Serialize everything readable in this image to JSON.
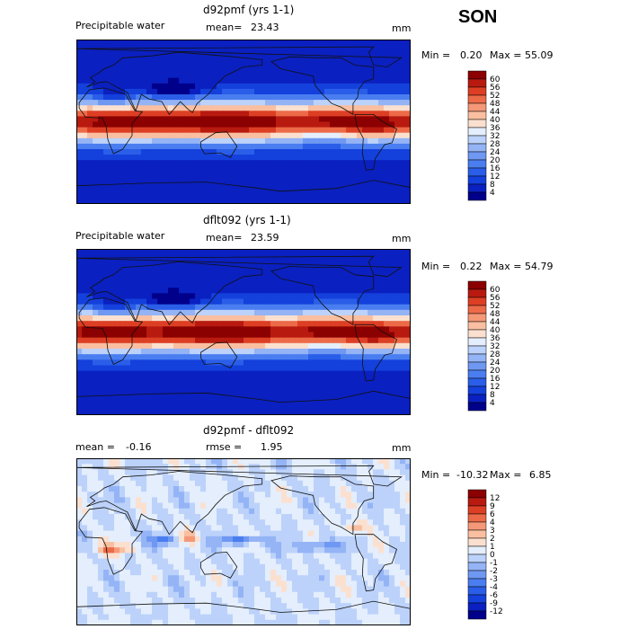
{
  "season": "SON",
  "chart_data": [
    {
      "type": "heatmap",
      "title": "d92pmf (yrs 1-1)",
      "field_label": "Precipitable water",
      "stat_label": "mean=",
      "stat_value": "23.43",
      "units": "mm",
      "min_text": "Min =",
      "min_value": "0.20",
      "max_text": "Max =",
      "max_value": "55.09",
      "levels": [
        4,
        8,
        12,
        16,
        20,
        24,
        28,
        32,
        36,
        40,
        44,
        48,
        52,
        56,
        60
      ],
      "colors": [
        "#00008b",
        "#0a20c0",
        "#1440dc",
        "#2a5ee8",
        "#4a7ef0",
        "#6f98f2",
        "#94b4f6",
        "#bcd2fa",
        "#e4eefc",
        "#fbe0d0",
        "#f9bfa0",
        "#f59878",
        "#ec6a48",
        "#dd3f24",
        "#b81a10",
        "#8b0000"
      ]
    },
    {
      "type": "heatmap",
      "title": "dflt092 (yrs 1-1)",
      "field_label": "Precipitable water",
      "stat_label": "mean=",
      "stat_value": "23.59",
      "units": "mm",
      "min_text": "Min =",
      "min_value": "0.22",
      "max_text": "Max =",
      "max_value": "54.79",
      "levels": [
        4,
        8,
        12,
        16,
        20,
        24,
        28,
        32,
        36,
        40,
        44,
        48,
        52,
        56,
        60
      ],
      "colors": [
        "#00008b",
        "#0a20c0",
        "#1440dc",
        "#2a5ee8",
        "#4a7ef0",
        "#6f98f2",
        "#94b4f6",
        "#bcd2fa",
        "#e4eefc",
        "#fbe0d0",
        "#f9bfa0",
        "#f59878",
        "#ec6a48",
        "#dd3f24",
        "#b81a10",
        "#8b0000"
      ]
    },
    {
      "type": "heatmap",
      "title": "d92pmf - dflt092",
      "stat_label": "mean =",
      "stat_value": "-0.16",
      "rmse_label": "rmse =",
      "rmse_value": "1.95",
      "units": "mm",
      "min_text": "Min =",
      "min_value": "-10.32",
      "max_text": "Max =",
      "max_value": "6.85",
      "levels": [
        "-12",
        "-9",
        "-6",
        "-4",
        "-3",
        "-2",
        "-1",
        "0",
        "1",
        "2",
        "3",
        "4",
        "6",
        "9",
        "12"
      ],
      "colors": [
        "#00008b",
        "#0a20c0",
        "#1440dc",
        "#2a5ee8",
        "#4a7ef0",
        "#6f98f2",
        "#94b4f6",
        "#bcd2fa",
        "#e4eefc",
        "#fbe0d0",
        "#f9bfa0",
        "#f59878",
        "#ec6a48",
        "#dd3f24",
        "#b81a10",
        "#8b0000"
      ]
    }
  ]
}
